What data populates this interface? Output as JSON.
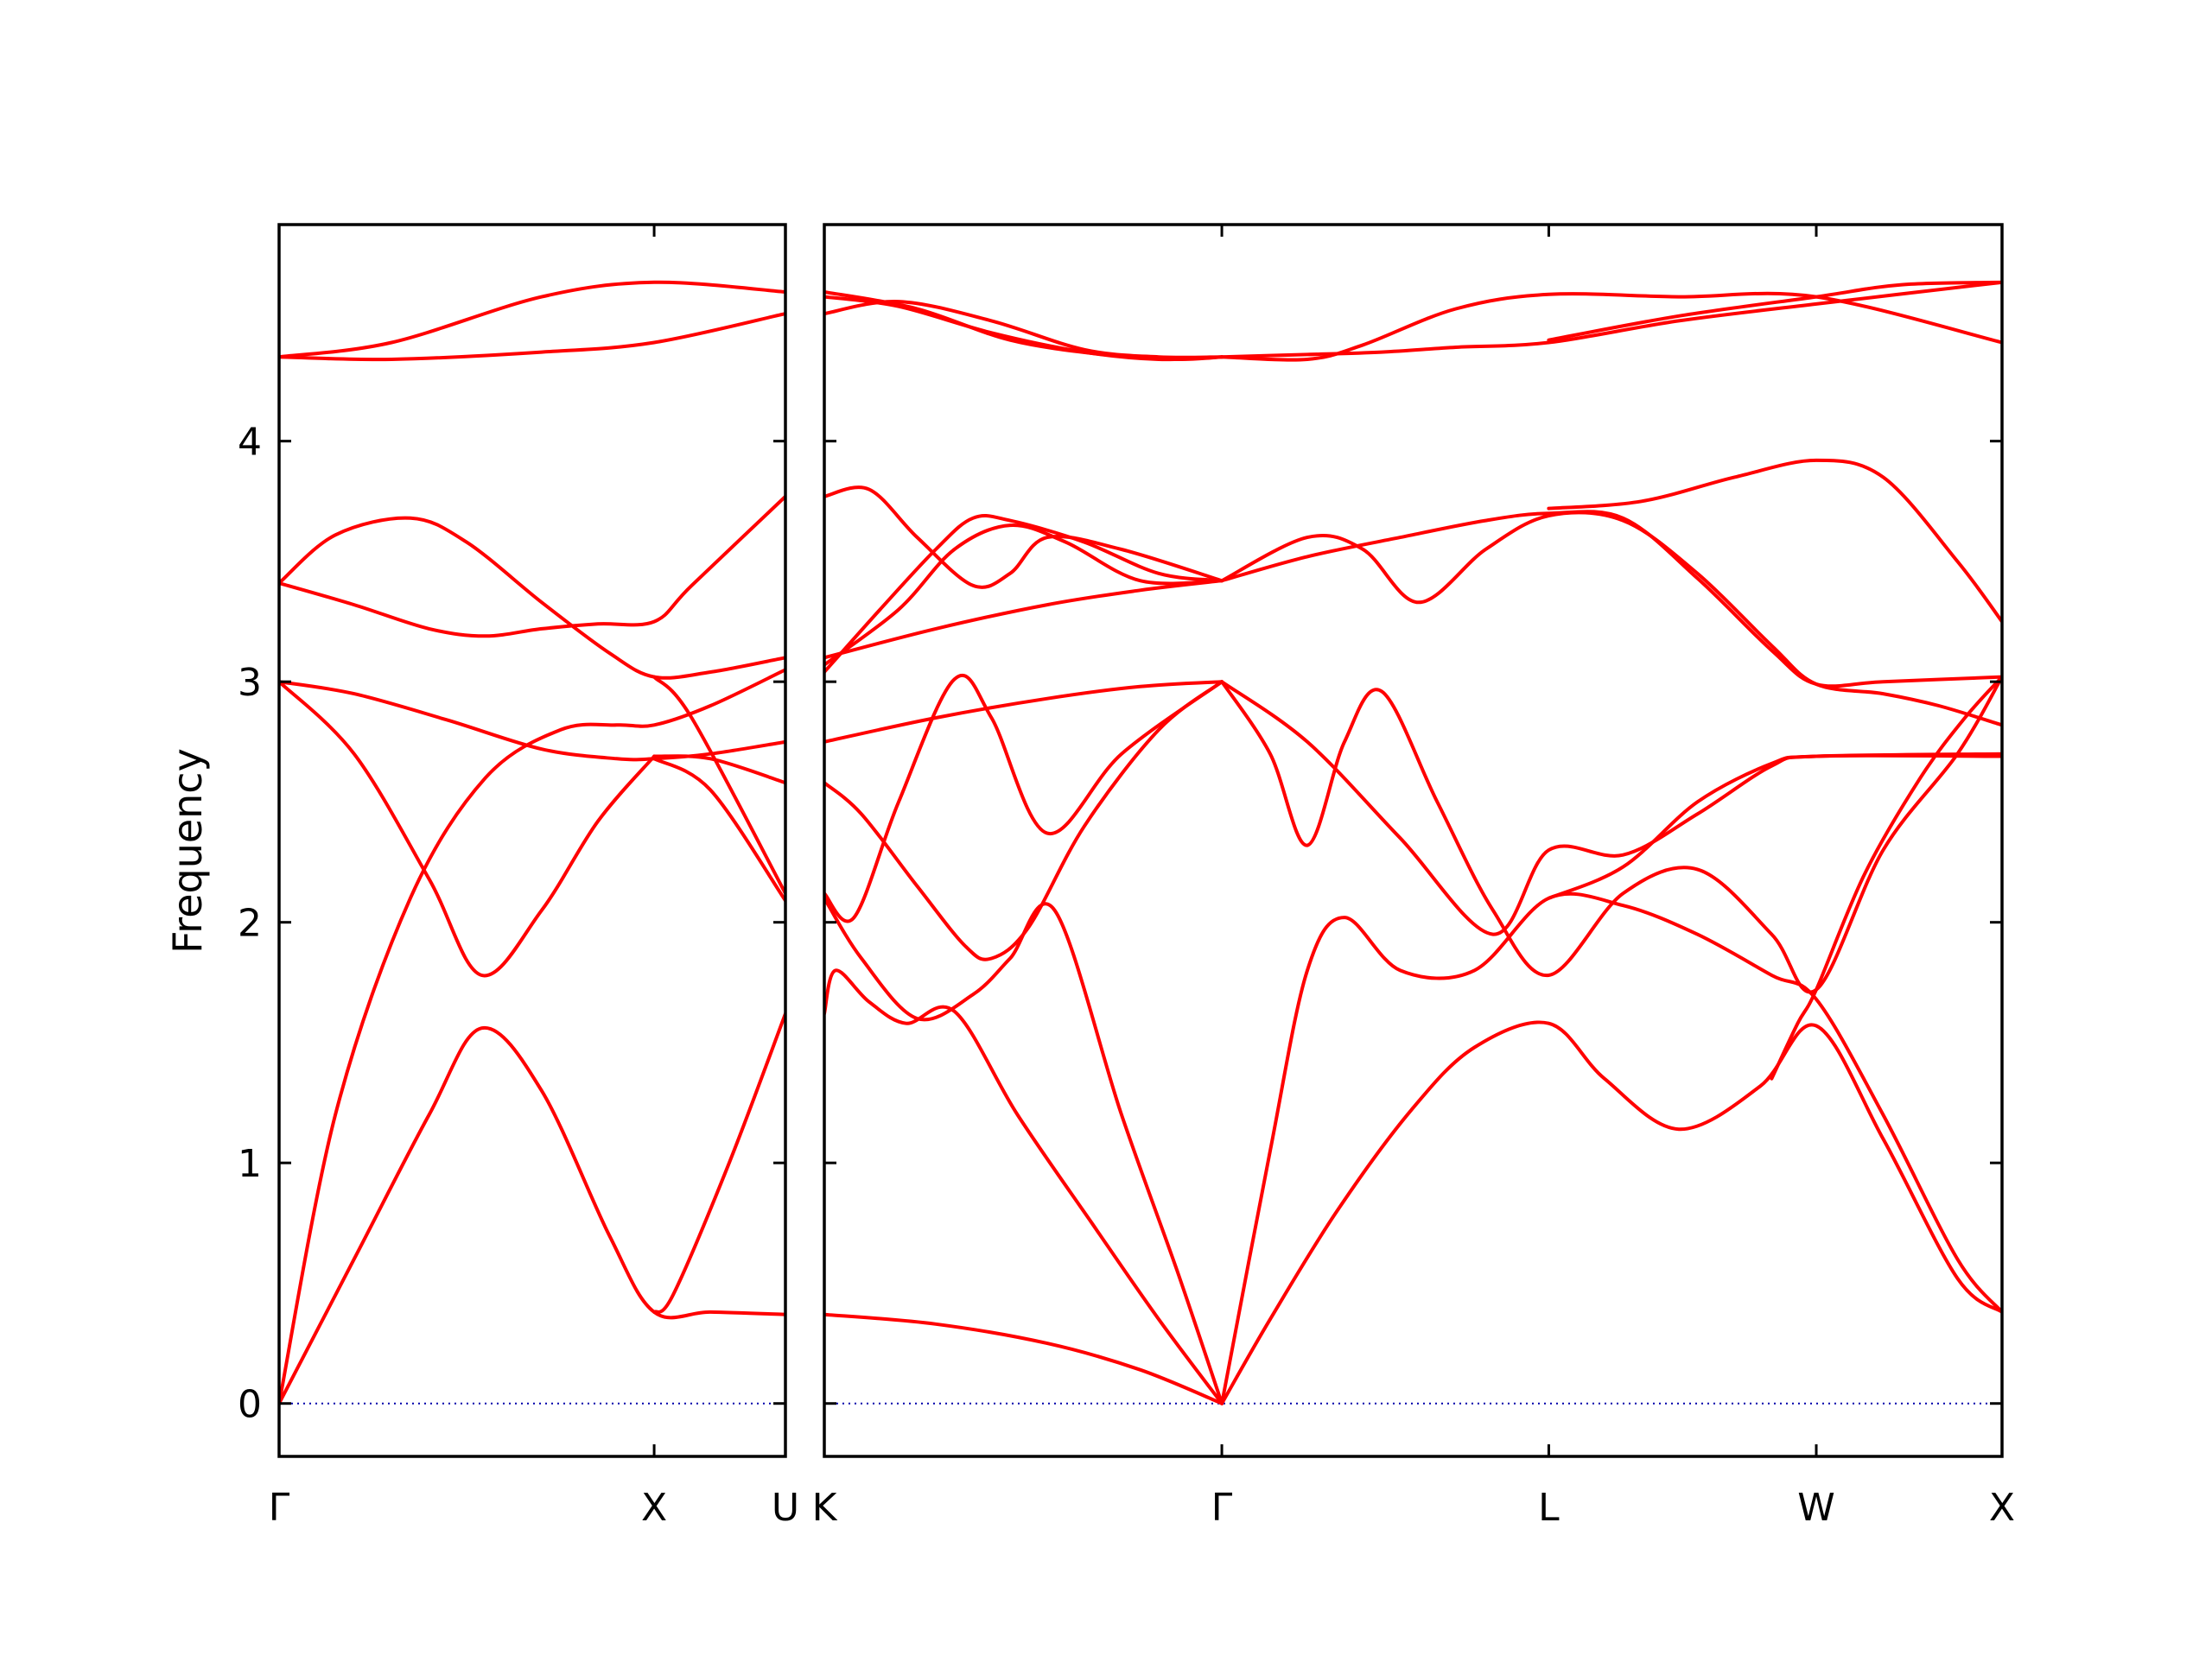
{
  "chart_data": {
    "type": "line",
    "title": "",
    "ylabel": "Frequency",
    "xlabel": "",
    "ylim": [
      -0.22,
      4.9
    ],
    "yticks": [
      0,
      1,
      2,
      3,
      4
    ],
    "grid": false,
    "legend": "none",
    "colors": {
      "band": "#ff0000",
      "zero_line": "#0000aa",
      "axes": "#000000"
    },
    "panels": [
      {
        "name": "left",
        "xlim": [
          0,
          1.35
        ],
        "tick_positions": [
          0,
          1,
          1.35
        ],
        "tick_labels": [
          "Γ",
          "X",
          "U"
        ],
        "series": [
          {
            "x": [
              0,
              0.2,
              0.4,
              0.54,
              0.7,
              0.88,
              1,
              1.15,
              1.35
            ],
            "values": [
              0,
              0.6,
              1.2,
              1.56,
              1.3,
              0.7,
              0.38,
              0.38,
              0.37
            ]
          },
          {
            "x": [
              0,
              0.2,
              0.4,
              0.54,
              0.7,
              0.85,
              1
            ],
            "values": [
              3.0,
              2.7,
              2.18,
              1.78,
              2.05,
              2.42,
              2.69
            ]
          },
          {
            "x": [
              0,
              0.15,
              0.35,
              0.55,
              0.75,
              0.9,
              1,
              1.15,
              1.35
            ],
            "values": [
              0,
              1.2,
              2.1,
              2.6,
              2.8,
              2.82,
              2.82,
              2.9,
              3.05
            ]
          },
          {
            "x": [
              0,
              0.2,
              0.45,
              0.7,
              0.9,
              1,
              1.15,
              1.35
            ],
            "values": [
              3.0,
              2.95,
              2.84,
              2.72,
              2.68,
              2.68,
              2.7,
              2.75
            ]
          },
          {
            "x": [
              0,
              0.2,
              0.4,
              0.55,
              0.7,
              0.85,
              1,
              1.1,
              1.35
            ],
            "values": [
              3.41,
              3.32,
              3.22,
              3.19,
              3.22,
              3.24,
              3.25,
              3.4,
              3.77
            ]
          },
          {
            "x": [
              0,
              0.15,
              0.35,
              0.5,
              0.7,
              0.88,
              1,
              1.15,
              1.35
            ],
            "values": [
              3.41,
              3.61,
              3.68,
              3.58,
              3.33,
              3.12,
              3.02,
              3.04,
              3.1
            ]
          },
          {
            "x": [
              1,
              1.1,
              1.35
            ],
            "values": [
              3.02,
              2.85,
              2.12
            ]
          },
          {
            "x": [
              1,
              1.15,
              1.35
            ],
            "values": [
              2.68,
              2.55,
              2.09
            ]
          },
          {
            "x": [
              1,
              1.15,
              1.35
            ],
            "values": [
              2.69,
              2.68,
              2.58
            ]
          },
          {
            "x": [
              1.35,
              1.2,
              1.05,
              1
            ],
            "values": [
              1.62,
              1.0,
              0.45,
              0.38
            ]
          },
          {
            "x": [
              0,
              0.3,
              0.7,
              1,
              1.35
            ],
            "values": [
              4.35,
              4.34,
              4.37,
              4.41,
              4.53
            ]
          },
          {
            "x": [
              0,
              0.3,
              0.7,
              1,
              1.35
            ],
            "values": [
              4.35,
              4.41,
              4.6,
              4.66,
              4.62
            ]
          }
        ]
      },
      {
        "name": "right",
        "xlim": [
          0,
          3.17
        ],
        "tick_positions": [
          0,
          1.07,
          1.95,
          2.67,
          3.17
        ],
        "tick_labels": [
          "K",
          "Γ",
          "L",
          "W",
          "X"
        ],
        "series": [
          {
            "x": [
              0,
              0.3,
              0.6,
              0.85,
              1.07
            ],
            "values": [
              0.37,
              0.33,
              0.25,
              0.14,
              0
            ]
          },
          {
            "x": [
              0,
              0.03,
              0.12,
              0.22,
              0.35,
              0.52,
              0.72,
              0.9,
              1.07
            ],
            "values": [
              1.62,
              1.8,
              1.67,
              1.58,
              1.63,
              1.2,
              0.75,
              0.35,
              0
            ]
          },
          {
            "x": [
              0,
              0.1,
              0.25,
              0.4,
              0.5,
              0.62,
              0.8,
              0.95,
              1.07
            ],
            "values": [
              2.1,
              1.85,
              1.6,
              1.7,
              1.85,
              2.05,
              1.2,
              0.55,
              0
            ]
          },
          {
            "x": [
              0,
              0.1,
              0.25,
              0.38,
              0.45,
              0.55,
              0.7,
              0.9,
              1.07
            ],
            "values": [
              2.58,
              2.45,
              2.15,
              1.9,
              1.85,
              1.98,
              2.4,
              2.8,
              3.0
            ]
          },
          {
            "x": [
              0,
              0.08,
              0.2,
              0.35,
              0.45,
              0.6,
              0.8,
              1.07
            ],
            "values": [
              2.12,
              2.02,
              2.5,
              3.01,
              2.85,
              2.37,
              2.7,
              3.0
            ]
          },
          {
            "x": [
              0,
              0.3,
              0.6,
              0.85,
              1.07
            ],
            "values": [
              2.75,
              2.85,
              2.93,
              2.98,
              3.0
            ]
          },
          {
            "x": [
              1.07,
              1.2,
              1.38,
              1.58,
              1.75,
              1.95,
              2.1,
              2.3,
              2.52,
              2.67,
              2.85,
              3.05,
              3.17
            ],
            "values": [
              0,
              0.35,
              0.8,
              1.22,
              1.48,
              1.58,
              1.35,
              1.14,
              1.32,
              1.57,
              1.1,
              0.52,
              0.38
            ]
          },
          {
            "x": [
              1.07,
              1.2,
              1.3,
              1.4,
              1.55,
              1.75,
              1.95,
              2.15,
              2.35,
              2.55,
              2.67,
              2.85,
              3.05,
              3.17
            ],
            "values": [
              0,
              1.05,
              1.8,
              2.02,
              1.8,
              1.8,
              2.1,
              2.07,
              1.95,
              1.78,
              1.68,
              1.2,
              0.6,
              0.38
            ]
          },
          {
            "x": [
              1.07,
              1.2,
              1.3,
              1.4,
              1.5,
              1.65,
              1.8,
              1.95,
              2.15,
              2.35,
              2.55,
              2.67,
              2.85,
              3.05,
              3.17
            ],
            "values": [
              3.0,
              2.7,
              2.32,
              2.75,
              2.96,
              2.5,
              2.05,
              1.78,
              2.12,
              2.22,
              1.95,
              1.72,
              2.3,
              2.7,
              3.02
            ]
          },
          {
            "x": [
              1.07,
              1.3,
              1.55,
              1.8,
              1.95,
              2.15,
              2.35,
              2.55,
              2.67,
              3.17
            ],
            "values": [
              3.0,
              2.75,
              2.35,
              1.95,
              2.3,
              2.28,
              2.45,
              2.65,
              2.69,
              2.69
            ]
          },
          {
            "x": [
              1.95,
              2.15,
              2.35,
              2.55,
              2.67,
              3.17
            ],
            "values": [
              2.1,
              2.23,
              2.5,
              2.66,
              2.69,
              2.7
            ]
          },
          {
            "x": [
              2.55,
              2.62,
              2.67,
              2.8,
              2.95,
              3.07,
              3.17
            ],
            "values": [
              1.35,
              1.58,
              1.72,
              2.2,
              2.6,
              2.85,
              3.02
            ]
          },
          {
            "x": [
              0,
              0.2,
              0.35,
              0.5,
              0.65,
              0.85,
              1.07
            ],
            "values": [
              3.07,
              3.3,
              3.55,
              3.65,
              3.58,
              3.42,
              3.42
            ]
          },
          {
            "x": [
              0,
              0.3,
              0.6,
              0.85,
              1.07
            ],
            "values": [
              3.1,
              3.22,
              3.32,
              3.38,
              3.42
            ]
          },
          {
            "x": [
              0,
              0.15,
              0.3,
              0.4,
              0.5,
              0.7,
              0.9,
              1.07
            ],
            "values": [
              3.04,
              3.3,
              3.55,
              3.68,
              3.67,
              3.58,
              3.45,
              3.42
            ]
          },
          {
            "x": [
              0,
              0.12,
              0.25,
              0.4,
              0.5,
              0.6,
              0.8,
              1.07
            ],
            "values": [
              3.77,
              3.8,
              3.6,
              3.4,
              3.45,
              3.6,
              3.55,
              3.42
            ]
          },
          {
            "x": [
              1.07,
              1.3,
              1.45,
              1.6,
              1.78,
              1.95,
              2.15,
              2.35,
              2.55,
              2.67,
              2.85,
              3.0,
              3.17
            ],
            "values": [
              3.42,
              3.6,
              3.55,
              3.33,
              3.55,
              3.69,
              3.67,
              3.45,
              3.15,
              2.99,
              2.95,
              2.9,
              2.82
            ]
          },
          {
            "x": [
              1.07,
              1.3,
              1.55,
              1.78,
              1.95,
              2.15,
              2.35,
              2.55,
              2.67,
              2.85,
              3.17
            ],
            "values": [
              3.42,
              3.52,
              3.6,
              3.67,
              3.7,
              3.68,
              3.43,
              3.13,
              2.99,
              3.0,
              3.02
            ]
          },
          {
            "x": [
              1.95,
              2.2,
              2.45,
              2.67,
              2.85,
              3.05,
              3.17
            ],
            "values": [
              3.72,
              3.75,
              3.85,
              3.92,
              3.85,
              3.5,
              3.25
            ]
          },
          {
            "x": [
              0,
              0.2,
              0.45,
              0.7,
              0.9,
              1.07
            ],
            "values": [
              4.6,
              4.56,
              4.45,
              4.37,
              4.34,
              4.35
            ]
          },
          {
            "x": [
              0,
              0.2,
              0.45,
              0.7,
              0.9,
              1.07
            ],
            "values": [
              4.53,
              4.58,
              4.5,
              4.38,
              4.35,
              4.35
            ]
          },
          {
            "x": [
              0,
              0.25,
              0.5,
              0.75,
              0.95,
              1.07
            ],
            "values": [
              4.62,
              4.55,
              4.42,
              4.36,
              4.34,
              4.35
            ]
          },
          {
            "x": [
              1.07,
              1.3,
              1.5,
              1.7,
              1.95,
              2.3,
              2.67,
              3.17
            ],
            "values": [
              4.35,
              4.36,
              4.37,
              4.39,
              4.41,
              4.5,
              4.57,
              4.66
            ]
          },
          {
            "x": [
              1.07,
              1.3,
              1.45,
              1.7,
              1.95,
              2.3,
              2.67,
              3.17
            ],
            "values": [
              4.35,
              4.34,
              4.4,
              4.55,
              4.61,
              4.6,
              4.6,
              4.41
            ]
          },
          {
            "x": [
              1.95,
              2.3,
              2.67,
              2.9,
              3.17
            ],
            "values": [
              4.42,
              4.52,
              4.6,
              4.65,
              4.66
            ]
          }
        ]
      }
    ]
  }
}
